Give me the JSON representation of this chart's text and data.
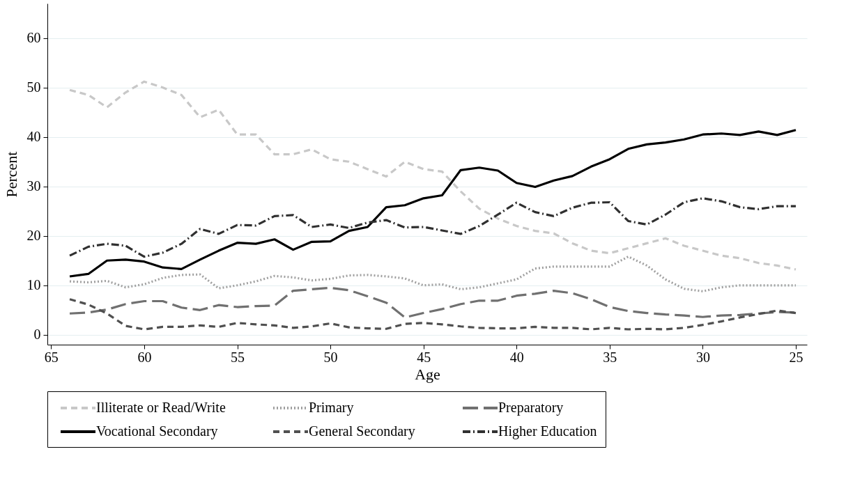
{
  "chart_data": {
    "type": "line",
    "xlabel": "Age",
    "ylabel": "Percent",
    "x": [
      64,
      63,
      62,
      61,
      60,
      59,
      58,
      57,
      56,
      55,
      54,
      53,
      52,
      51,
      50,
      49,
      48,
      47,
      46,
      45,
      44,
      43,
      42,
      41,
      40,
      39,
      38,
      37,
      36,
      35,
      34,
      33,
      32,
      31,
      30,
      29,
      28,
      27,
      26,
      25
    ],
    "series": [
      {
        "name": "Illiterate or Read/Write",
        "color": "#c8c8c8",
        "line_style": "dashed",
        "values": [
          49.5,
          48.5,
          46,
          49,
          51.2,
          50,
          48.5,
          44,
          45.5,
          40.5,
          40.5,
          36.5,
          36.5,
          37.5,
          35.5,
          35,
          33.5,
          32,
          35,
          33.5,
          33,
          29,
          25.5,
          23.5,
          22,
          21,
          20.5,
          18.5,
          17,
          16.5,
          17.5,
          18.5,
          19.5,
          18,
          17,
          16,
          15.5,
          14.5,
          14,
          13.2
        ]
      },
      {
        "name": "Primary",
        "color": "#a0a0a0",
        "line_style": "dotted",
        "values": [
          10.8,
          10.6,
          10.9,
          9.6,
          10.2,
          11.5,
          12.1,
          12.2,
          9.4,
          10,
          10.8,
          11.9,
          11.6,
          11,
          11.3,
          12,
          12.1,
          11.8,
          11.4,
          10,
          10.2,
          9.2,
          9.6,
          10.4,
          11.2,
          13.4,
          13.8,
          13.8,
          13.8,
          13.8,
          15.8,
          14,
          11.2,
          9.3,
          8.8,
          9.6,
          10,
          10,
          10,
          10
        ]
      },
      {
        "name": "Preparatory",
        "color": "#707070",
        "line_style": "longdash",
        "values": [
          4.3,
          4.5,
          5.1,
          6.2,
          6.8,
          6.8,
          5.5,
          5,
          6,
          5.6,
          5.8,
          5.9,
          8.9,
          9.2,
          9.5,
          9,
          7.8,
          6.5,
          3.5,
          4.4,
          5.2,
          6.2,
          6.9,
          6.9,
          7.9,
          8.3,
          8.9,
          8.4,
          7.2,
          5.6,
          4.8,
          4.4,
          4.1,
          3.9,
          3.6,
          3.9,
          4,
          4.3,
          4.6,
          4.5
        ]
      },
      {
        "name": "Vocational Secondary",
        "color": "#000000",
        "line_style": "solid",
        "values": [
          11.8,
          12.3,
          15,
          15.2,
          14.8,
          13.6,
          13.3,
          15.2,
          17,
          18.6,
          18.4,
          19.3,
          17.2,
          18.8,
          18.9,
          21,
          21.8,
          25.8,
          26.2,
          27.6,
          28.2,
          33.3,
          33.8,
          33.2,
          30.7,
          29.9,
          31.2,
          32.1,
          34,
          35.5,
          37.6,
          38.5,
          38.9,
          39.5,
          40.5,
          40.7,
          40.4,
          41.1,
          40.4,
          41.4
        ]
      },
      {
        "name": "General Secondary",
        "color": "#505050",
        "line_style": "dashed",
        "values": [
          7.2,
          6.1,
          4.3,
          1.8,
          1.1,
          1.6,
          1.6,
          1.9,
          1.6,
          2.4,
          2.1,
          1.9,
          1.4,
          1.7,
          2.3,
          1.5,
          1.3,
          1.2,
          2.2,
          2.4,
          2.1,
          1.7,
          1.4,
          1.3,
          1.3,
          1.6,
          1.4,
          1.4,
          1.1,
          1.4,
          1.1,
          1.2,
          1.1,
          1.4,
          2,
          2.7,
          3.5,
          4.2,
          4.9,
          4.4
        ]
      },
      {
        "name": "Higher Education",
        "color": "#303030",
        "line_style": "dashdot",
        "values": [
          16,
          17.8,
          18.4,
          18,
          15.8,
          16.6,
          18.4,
          21.4,
          20.4,
          22.2,
          22.1,
          24,
          24.2,
          21.8,
          22.3,
          21.6,
          22.7,
          23.2,
          21.7,
          21.8,
          21.1,
          20.4,
          22,
          24.3,
          26.7,
          24.8,
          24,
          25.7,
          26.7,
          26.8,
          23,
          22.3,
          24.3,
          26.8,
          27.6,
          27,
          25.8,
          25.4,
          26,
          26
        ]
      }
    ],
    "xlim": [
      65.2,
      24.4
    ],
    "xticks": [
      65,
      60,
      55,
      50,
      45,
      40,
      35,
      30,
      25
    ],
    "ylim": [
      -2,
      67
    ],
    "yticks": [
      0,
      10,
      20,
      30,
      40,
      50,
      60
    ],
    "grid": "y",
    "legend": "bottom"
  }
}
